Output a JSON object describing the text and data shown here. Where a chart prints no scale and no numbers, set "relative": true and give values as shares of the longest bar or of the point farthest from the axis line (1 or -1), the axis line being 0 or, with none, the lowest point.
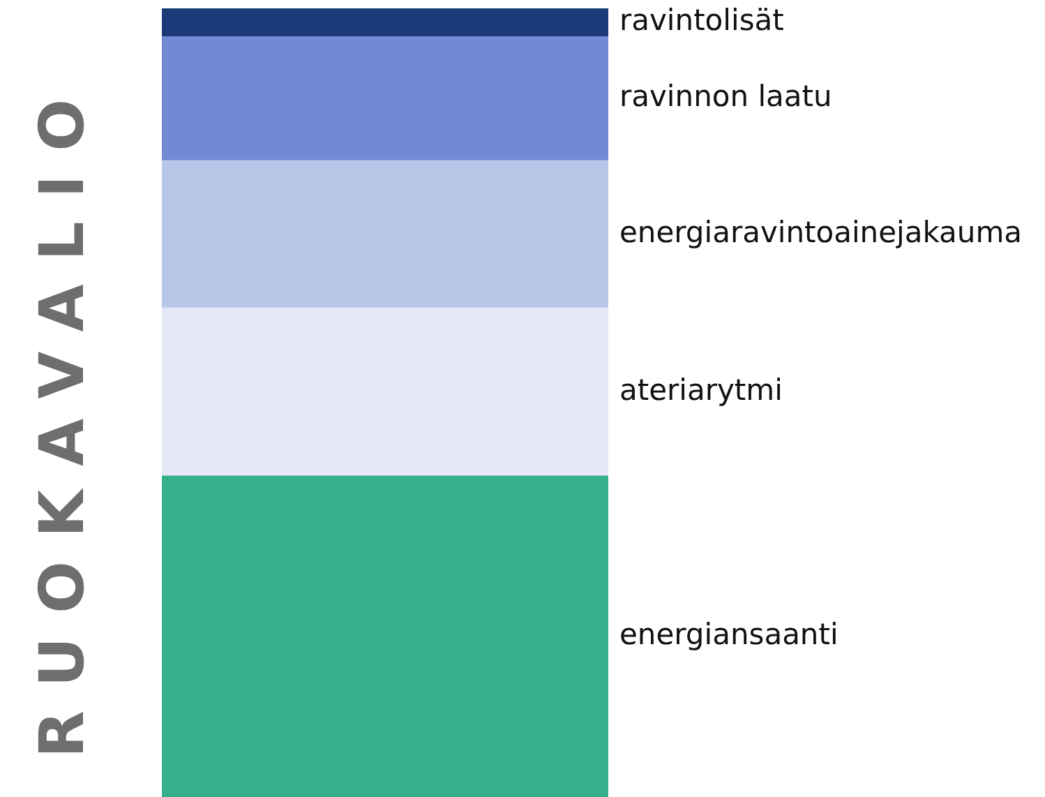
{
  "chart_data": {
    "type": "bar",
    "ylabel": "RUOKAVALIO",
    "categories": [
      null
    ],
    "stacked": true,
    "relative": true,
    "series": [
      {
        "name": "energiansaanti",
        "color": "#35b08a",
        "values": [
          0.407
        ]
      },
      {
        "name": "ateriarytmi",
        "color": "#e6e9f5",
        "values": [
          0.213
        ]
      },
      {
        "name": "energiaravintoainejakauma",
        "color": "#b8c6e8",
        "values": [
          0.187
        ]
      },
      {
        "name": "ravinnon laatu",
        "color": "#7289d6",
        "values": [
          0.157
        ]
      },
      {
        "name": "ravintolisät",
        "color": "#1a3a78",
        "values": [
          0.036
        ]
      }
    ]
  }
}
